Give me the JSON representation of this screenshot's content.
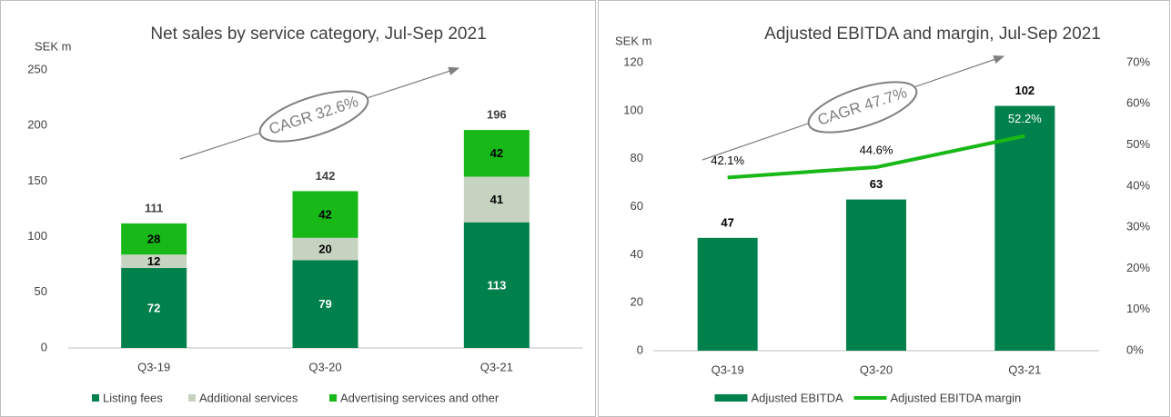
{
  "chart_data": [
    {
      "type": "bar",
      "stacked": true,
      "title": "Net sales by service category, Jul-Sep 2021",
      "y_label": "SEK m",
      "annotation": "CAGR 32.6%",
      "categories": [
        "Q3-19",
        "Q3-20",
        "Q3-21"
      ],
      "series": [
        {
          "name": "Listing fees",
          "color": "#00804a",
          "values": [
            72,
            79,
            113
          ]
        },
        {
          "name": "Additional services",
          "color": "#c6d3c0",
          "values": [
            12,
            20,
            41
          ]
        },
        {
          "name": "Advertising services and other",
          "color": "#17b817",
          "values": [
            28,
            42,
            42
          ]
        }
      ],
      "totals": [
        111,
        142,
        196
      ],
      "ylim": [
        0,
        250
      ],
      "yticks": [
        0,
        50,
        100,
        150,
        200,
        250
      ],
      "legend": "bottom"
    },
    {
      "type": "combo",
      "title": "Adjusted EBITDA and margin, Jul-Sep 2021",
      "y_label": "SEK m",
      "annotation": "CAGR 47.7%",
      "categories": [
        "Q3-19",
        "Q3-20",
        "Q3-21"
      ],
      "series": [
        {
          "name": "Adjusted EBITDA",
          "type": "bar",
          "color": "#00804a",
          "values": [
            47,
            63,
            102
          ]
        },
        {
          "name": "Adjusted EBITDA margin",
          "type": "line",
          "axis": "y2",
          "color": "#17b817",
          "values": [
            42.1,
            44.6,
            52.2
          ],
          "value_labels": [
            "42.1%",
            "44.6%",
            "52.2%"
          ]
        }
      ],
      "ylim": [
        0,
        120
      ],
      "yticks": [
        0,
        20,
        40,
        60,
        80,
        100,
        120
      ],
      "y2lim": [
        0,
        70
      ],
      "y2ticks": [
        {
          "value": 0,
          "label": "0%"
        },
        {
          "value": 10,
          "label": "10%"
        },
        {
          "value": 20,
          "label": "20%"
        },
        {
          "value": 30,
          "label": "30%"
        },
        {
          "value": 40,
          "label": "40%"
        },
        {
          "value": 50,
          "label": "50%"
        },
        {
          "value": 60,
          "label": "60%"
        },
        {
          "value": 70,
          "label": "70%"
        }
      ],
      "legend": "bottom"
    }
  ]
}
